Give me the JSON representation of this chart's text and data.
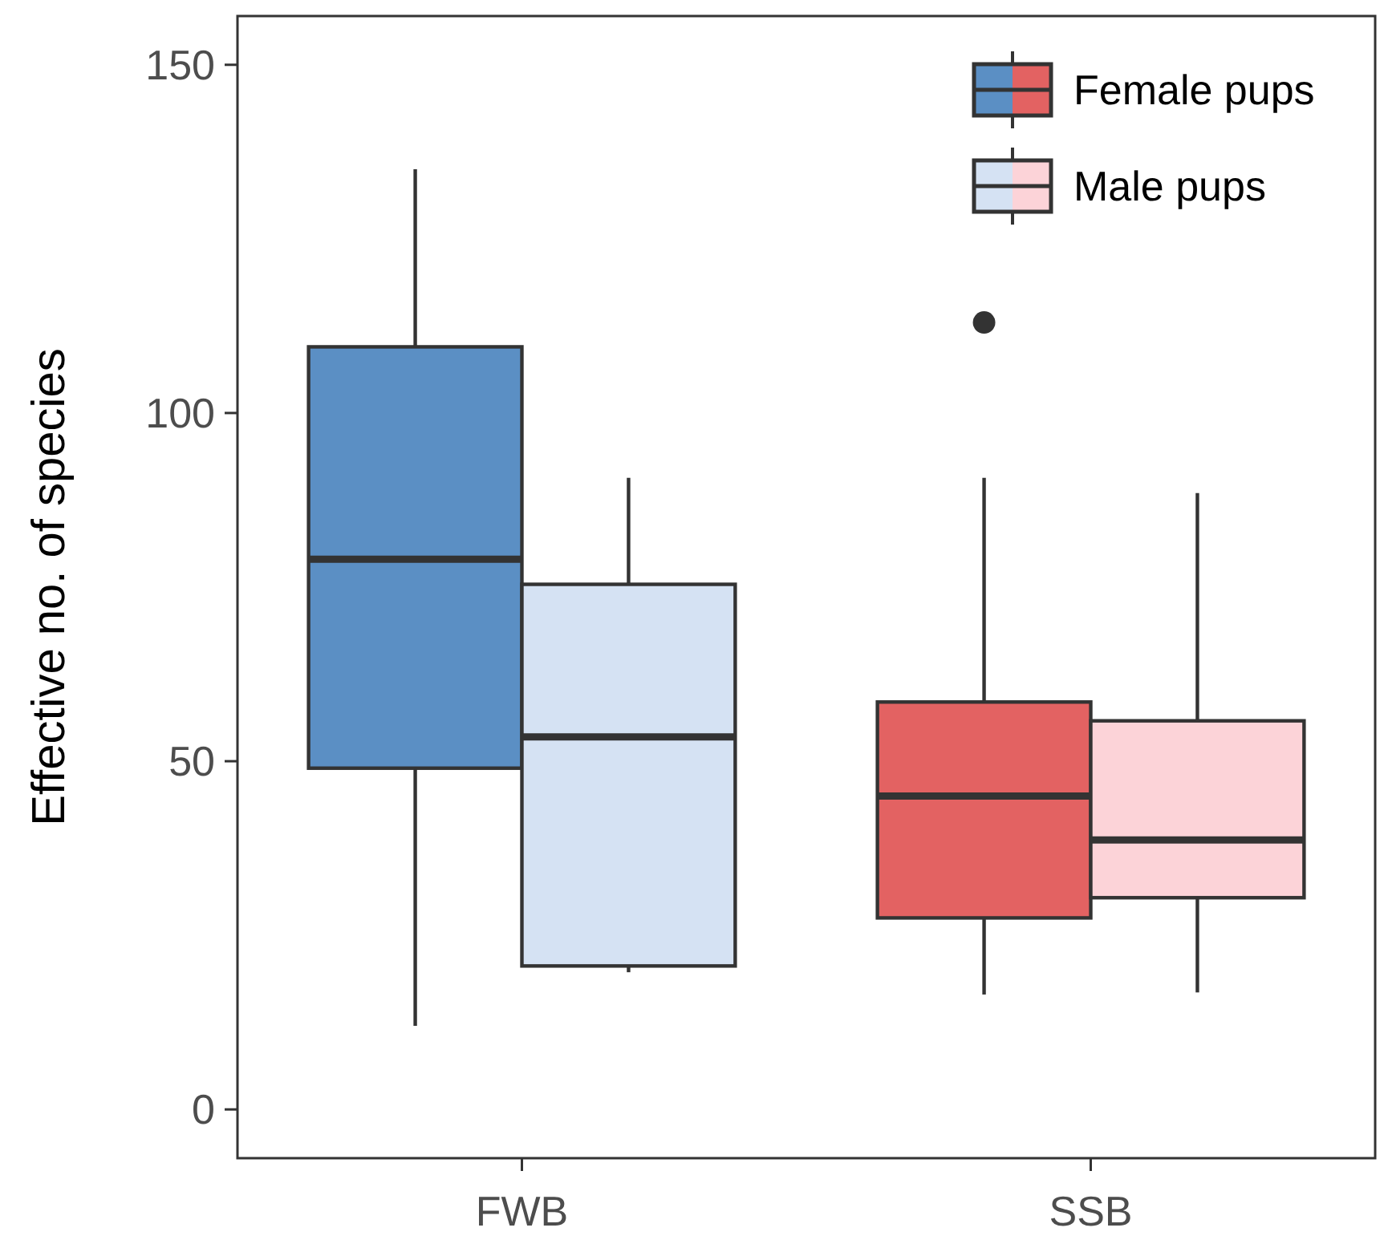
{
  "chart_data": {
    "type": "box",
    "ylabel": "Effective no. of species",
    "categories": [
      "FWB",
      "SSB"
    ],
    "ylim": [
      -7,
      157
    ],
    "yticks": [
      0,
      50,
      100,
      150
    ],
    "grid": false,
    "legend": "top right",
    "series": [
      {
        "name": "Female pups",
        "colors": [
          "#5b8fc4",
          "#e36262"
        ],
        "boxes": [
          {
            "low": 12,
            "q1": 49,
            "median": 79,
            "q3": 109.5,
            "high": 135
          },
          {
            "low": 16.5,
            "q1": 27.5,
            "median": 45,
            "q3": 58.5,
            "high": 90.7,
            "outliers": [
              113
            ]
          }
        ]
      },
      {
        "name": "Male pups",
        "colors": [
          "#d5e2f3",
          "#fcd3d8"
        ],
        "boxes": [
          {
            "low": 19.7,
            "q1": 20.6,
            "median": 53.5,
            "q3": 75.4,
            "high": 90.7
          },
          {
            "low": 16.8,
            "q1": 30.4,
            "median": 38.7,
            "q3": 55.8,
            "high": 88.5
          }
        ]
      }
    ]
  }
}
